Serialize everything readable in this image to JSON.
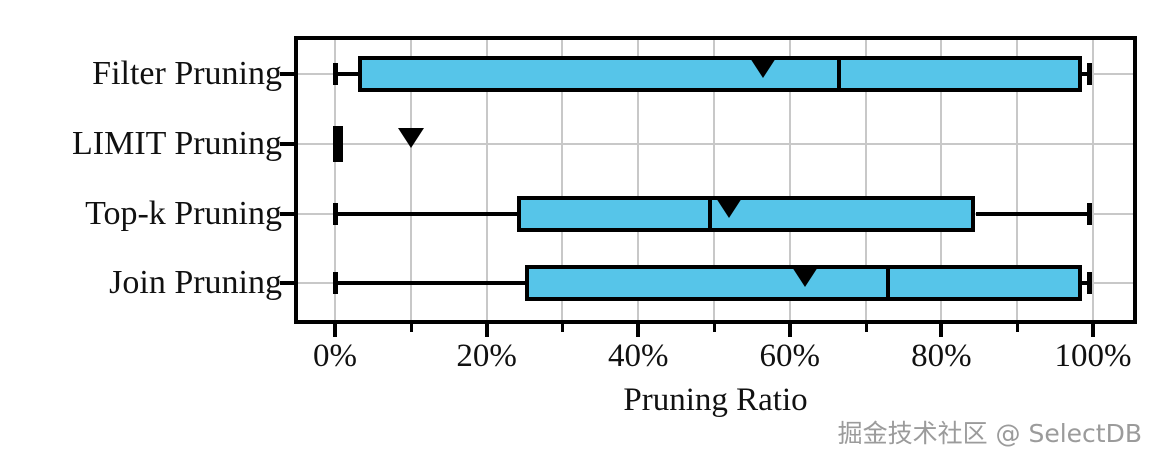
{
  "watermark": "掘金技术社区 @ SelectDB",
  "chart_data": {
    "type": "boxplot",
    "orientation": "horizontal",
    "title": "",
    "xlabel": "Pruning Ratio",
    "xlim": [
      -5,
      105.5
    ],
    "grid": true,
    "grid_values": [
      0,
      10,
      20,
      30,
      40,
      50,
      60,
      70,
      80,
      90,
      100
    ],
    "x_ticks": [
      {
        "value": 0,
        "label": "0%"
      },
      {
        "value": 20,
        "label": "20%"
      },
      {
        "value": 40,
        "label": "40%"
      },
      {
        "value": 60,
        "label": "60%"
      },
      {
        "value": 80,
        "label": "80%"
      },
      {
        "value": 100,
        "label": "100%"
      }
    ],
    "x_minor_ticks": [
      10,
      30,
      50,
      70,
      90
    ],
    "legend": "none",
    "mean_marker": "filled-triangle-down",
    "colors": {
      "box_fill": "#56c5e9",
      "line": "#000000",
      "grid": "#c8c8c8",
      "background": "#ffffff"
    },
    "categories": [
      "Filter Pruning",
      "LIMIT Pruning",
      "Top-k Pruning",
      "Join Pruning"
    ],
    "boxes": [
      {
        "label": "Filter Pruning",
        "whisker_min": 0,
        "q1": 3,
        "median": 66.5,
        "q3": 98.5,
        "whisker_max": 99.5,
        "mean": 56.5
      },
      {
        "label": "LIMIT Pruning",
        "whisker_min": 0,
        "q1": 0,
        "median": 0,
        "q3": 0,
        "whisker_max": 0,
        "mean": 10
      },
      {
        "label": "Top-k Pruning",
        "whisker_min": 0,
        "q1": 24,
        "median": 49.5,
        "q3": 84.5,
        "whisker_max": 99.5,
        "mean": 52
      },
      {
        "label": "Join Pruning",
        "whisker_min": 0,
        "q1": 25,
        "median": 73,
        "q3": 98.5,
        "whisker_max": 99.5,
        "mean": 62
      }
    ]
  }
}
